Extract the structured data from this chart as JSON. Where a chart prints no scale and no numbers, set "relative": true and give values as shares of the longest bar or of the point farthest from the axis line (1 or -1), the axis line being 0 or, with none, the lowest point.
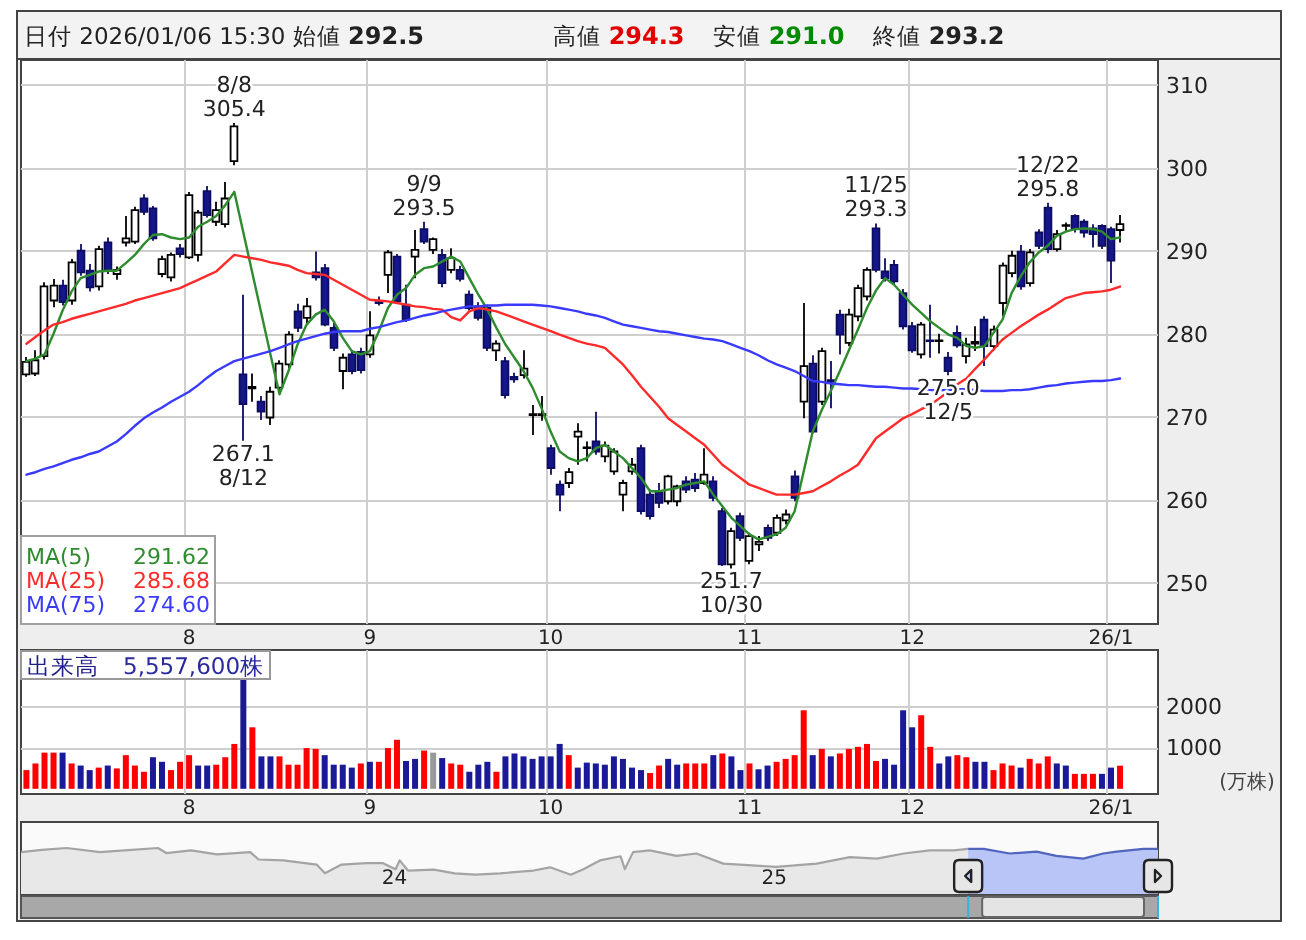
{
  "chart_data": [
    {
      "type": "candlestick",
      "title": "日付 2026/01/06 15:30 始値 **292.5** 高値 **294.3** 安値 **291.0** 終値 **293.2**",
      "categories": [
        null,
        null,
        null,
        null,
        null,
        null,
        null,
        null,
        null,
        null,
        null,
        null,
        null,
        null,
        null,
        null,
        null,
        null,
        "8",
        null,
        null,
        null,
        null,
        null,
        null,
        null,
        null,
        null,
        null,
        null,
        null,
        null,
        null,
        null,
        null,
        null,
        null,
        null,
        "9",
        null,
        null,
        null,
        null,
        null,
        null,
        null,
        null,
        null,
        null,
        null,
        null,
        null,
        null,
        null,
        null,
        null,
        null,
        null,
        "10",
        null,
        null,
        null,
        null,
        null,
        null,
        null,
        null,
        null,
        null,
        null,
        null,
        null,
        null,
        null,
        null,
        null,
        null,
        null,
        null,
        null,
        "11",
        null,
        null,
        null,
        null,
        null,
        null,
        null,
        null,
        null,
        null,
        null,
        null,
        null,
        null,
        null,
        null,
        null,
        "12",
        null,
        null,
        null,
        null,
        null,
        null,
        null,
        null,
        null,
        null,
        null,
        null,
        null,
        null,
        null,
        null,
        null,
        null,
        null,
        null,
        null,
        "26/1",
        null
      ],
      "ohlc": [
        [
          275.1,
          277.2,
          274.8,
          276.6
        ],
        [
          275.2,
          278.0,
          274.9,
          276.8
        ],
        [
          277.3,
          286.2,
          276.9,
          285.7
        ],
        [
          284.0,
          286.6,
          283.2,
          285.8
        ],
        [
          285.8,
          286.5,
          283.4,
          283.8
        ],
        [
          284.0,
          289.0,
          283.5,
          288.6
        ],
        [
          290.0,
          290.8,
          287.0,
          287.4
        ],
        [
          287.6,
          288.4,
          285.1,
          285.6
        ],
        [
          285.7,
          290.6,
          285.2,
          290.2
        ],
        [
          291.0,
          291.6,
          287.2,
          287.6
        ],
        [
          287.2,
          288.1,
          286.5,
          287.7
        ],
        [
          291.0,
          294.2,
          290.5,
          291.5
        ],
        [
          291.1,
          295.3,
          290.8,
          294.9
        ],
        [
          296.3,
          296.8,
          294.3,
          294.7
        ],
        [
          295.1,
          295.4,
          291.2,
          291.5
        ],
        [
          287.2,
          289.4,
          286.8,
          289.0
        ],
        [
          286.8,
          289.8,
          286.3,
          289.5
        ],
        [
          290.3,
          290.8,
          289.2,
          289.6
        ],
        [
          289.2,
          297.1,
          289.0,
          296.7
        ],
        [
          289.5,
          294.9,
          288.7,
          294.6
        ],
        [
          297.2,
          297.8,
          294.0,
          294.3
        ],
        [
          293.5,
          295.9,
          293.0,
          294.9
        ],
        [
          293.2,
          298.3,
          292.8,
          296.3
        ],
        [
          300.8,
          305.4,
          300.3,
          305.0
        ],
        [
          275.1,
          284.7,
          267.1,
          271.5
        ],
        [
          273.4,
          275.2,
          271.8,
          273.6
        ],
        [
          271.8,
          272.5,
          269.6,
          270.6
        ],
        [
          269.9,
          273.6,
          269.0,
          273.0
        ],
        [
          273.5,
          276.8,
          273.0,
          276.4
        ],
        [
          276.3,
          280.3,
          275.8,
          279.9
        ],
        [
          282.7,
          283.6,
          280.2,
          280.7
        ],
        [
          281.9,
          284.3,
          281.2,
          283.3
        ],
        [
          287.4,
          289.9,
          286.4,
          286.8
        ],
        [
          287.9,
          288.4,
          280.9,
          281.1
        ],
        [
          280.7,
          281.3,
          277.9,
          278.3
        ],
        [
          275.5,
          277.6,
          273.3,
          277.1
        ],
        [
          277.5,
          278.0,
          275.1,
          275.5
        ],
        [
          277.8,
          278.3,
          275.2,
          275.6
        ],
        [
          277.5,
          282.7,
          277.1,
          279.8
        ],
        [
          283.8,
          284.5,
          283.4,
          283.7
        ],
        [
          287.1,
          290.1,
          284.9,
          289.8
        ],
        [
          289.3,
          289.6,
          283.6,
          283.9
        ],
        [
          283.5,
          285.9,
          281.4,
          281.7
        ],
        [
          289.3,
          292.5,
          286.7,
          290.1
        ],
        [
          292.6,
          293.5,
          290.8,
          291.1
        ],
        [
          290.1,
          291.6,
          289.6,
          291.4
        ],
        [
          289.5,
          290.2,
          285.6,
          286.1
        ],
        [
          287.7,
          290.3,
          287.3,
          289.1
        ],
        [
          287.7,
          288.2,
          286.3,
          286.6
        ],
        [
          284.7,
          285.2,
          282.8,
          283.1
        ],
        [
          283.3,
          283.8,
          281.6,
          281.9
        ],
        [
          283.1,
          283.5,
          277.9,
          278.3
        ],
        [
          278.0,
          279.2,
          276.7,
          278.8
        ],
        [
          276.7,
          277.2,
          272.2,
          272.6
        ],
        [
          274.8,
          275.3,
          274.1,
          274.5
        ],
        [
          275.0,
          278.0,
          274.6,
          275.8
        ],
        [
          270.2,
          271.4,
          267.8,
          270.3
        ],
        [
          270.2,
          272.5,
          269.5,
          270.3
        ],
        [
          266.2,
          266.6,
          263.0,
          263.8
        ],
        [
          261.8,
          262.3,
          258.6,
          260.6
        ],
        [
          262.0,
          263.8,
          261.4,
          263.3
        ],
        [
          267.6,
          269.2,
          264.2,
          268.2
        ],
        [
          266.2,
          267.0,
          264.6,
          266.3
        ],
        [
          267.0,
          270.6,
          265.4,
          265.8
        ],
        [
          265.2,
          267.0,
          264.5,
          266.5
        ],
        [
          263.4,
          266.2,
          263.0,
          265.8
        ],
        [
          260.6,
          262.4,
          258.6,
          262.0
        ],
        [
          263.4,
          265.0,
          263.0,
          264.2
        ],
        [
          266.2,
          266.6,
          258.2,
          258.6
        ],
        [
          260.6,
          261.2,
          257.6,
          258.0
        ],
        [
          260.8,
          262.0,
          259.0,
          259.6
        ],
        [
          259.8,
          263.0,
          259.4,
          262.8
        ],
        [
          259.8,
          261.8,
          259.2,
          261.6
        ],
        [
          262.2,
          262.8,
          260.8,
          261.2
        ],
        [
          262.4,
          263.2,
          260.9,
          261.4
        ],
        [
          262.0,
          266.2,
          261.8,
          263.0
        ],
        [
          262.2,
          262.8,
          259.8,
          260.2
        ],
        [
          258.6,
          259.0,
          252.0,
          252.2
        ],
        [
          252.2,
          256.6,
          251.7,
          256.2
        ],
        [
          258.0,
          258.4,
          255.0,
          255.4
        ],
        [
          252.6,
          256.0,
          252.2,
          255.6
        ],
        [
          254.6,
          255.6,
          253.8,
          254.9
        ],
        [
          256.6,
          257.0,
          255.0,
          255.4
        ],
        [
          256.0,
          258.2,
          255.6,
          257.8
        ],
        [
          257.5,
          258.8,
          257.0,
          258.2
        ],
        [
          262.8,
          263.5,
          259.8,
          260.2
        ],
        [
          271.8,
          283.7,
          269.8,
          276.1
        ],
        [
          276.4,
          277.4,
          268.0,
          268.2
        ],
        [
          271.8,
          278.3,
          271.4,
          277.9
        ],
        [
          274.4,
          276.7,
          271.0,
          274.2
        ],
        [
          282.3,
          282.9,
          277.5,
          279.9
        ],
        [
          278.9,
          283.0,
          278.5,
          282.3
        ],
        [
          282.1,
          285.9,
          281.5,
          285.5
        ],
        [
          284.5,
          288.0,
          284.0,
          287.7
        ],
        [
          292.7,
          293.3,
          287.4,
          287.7
        ],
        [
          287.5,
          289.1,
          286.3,
          286.7
        ],
        [
          288.3,
          288.9,
          285.9,
          286.3
        ],
        [
          284.9,
          285.4,
          280.5,
          280.9
        ],
        [
          280.9,
          281.4,
          277.7,
          278.0
        ],
        [
          277.5,
          281.4,
          277.0,
          281.1
        ],
        [
          279.2,
          283.5,
          277.1,
          279.1
        ],
        [
          279.1,
          280.0,
          277.6,
          279.2
        ],
        [
          277.1,
          277.8,
          275.0,
          275.5
        ],
        [
          280.1,
          281.0,
          278.3,
          278.6
        ],
        [
          277.3,
          279.5,
          276.4,
          278.7
        ],
        [
          278.8,
          280.9,
          277.9,
          279.0
        ],
        [
          281.7,
          282.1,
          276.1,
          278.5
        ],
        [
          278.5,
          281.0,
          278.0,
          280.5
        ],
        [
          283.7,
          288.6,
          282.1,
          288.2
        ],
        [
          287.3,
          290.0,
          286.8,
          289.4
        ],
        [
          289.9,
          290.7,
          285.3,
          285.7
        ],
        [
          286.1,
          290.2,
          285.7,
          289.8
        ],
        [
          292.2,
          292.6,
          290.2,
          290.6
        ],
        [
          295.2,
          295.8,
          289.7,
          290.2
        ],
        [
          290.2,
          292.5,
          289.9,
          292.0
        ],
        [
          293.0,
          293.4,
          292.4,
          293.1
        ],
        [
          294.2,
          294.4,
          292.2,
          292.6
        ],
        [
          293.5,
          293.8,
          291.6,
          292.2
        ],
        [
          292.7,
          293.2,
          290.4,
          292.0
        ],
        [
          293.0,
          293.2,
          290.2,
          290.6
        ],
        [
          292.6,
          292.9,
          286.1,
          288.8
        ],
        [
          292.5,
          294.3,
          291.0,
          293.2
        ]
      ],
      "series": [
        {
          "type": "line",
          "name": "MA(5)",
          "color": "#2e8b2e",
          "values": [
            276.7,
            277.0,
            277.5,
            280.0,
            282.8,
            285.1,
            286.7,
            287.1,
            287.5,
            287.6,
            287.6,
            288.5,
            289.5,
            290.8,
            291.9,
            292.0,
            291.6,
            291.4,
            291.6,
            292.9,
            293.5,
            294.2,
            295.5,
            297.1,
            292.2,
            287.3,
            282.4,
            277.5,
            272.7,
            275.5,
            278.7,
            281.1,
            282.3,
            282.9,
            281.5,
            279.5,
            277.9,
            277.5,
            277.9,
            280.3,
            283.1,
            284.7,
            285.5,
            287.1,
            287.9,
            288.1,
            288.7,
            289.3,
            288.7,
            286.7,
            284.7,
            282.9,
            280.7,
            278.7,
            277.1,
            275.5,
            273.5,
            271.0,
            268.2,
            265.8,
            265.0,
            264.6,
            265.0,
            266.2,
            266.6,
            265.8,
            265.0,
            263.8,
            262.6,
            261.0,
            261.0,
            261.2,
            261.4,
            261.8,
            262.0,
            262.2,
            260.6,
            259.2,
            257.8,
            256.8,
            255.8,
            255.2,
            255.5,
            255.8,
            256.6,
            258.6,
            263.4,
            268.2,
            270.8,
            273.1,
            275.5,
            278.0,
            280.5,
            283.1,
            285.2,
            286.7,
            285.9,
            284.7,
            283.5,
            282.5,
            281.5,
            280.7,
            279.9,
            279.5,
            278.5,
            278.3,
            278.5,
            280.1,
            281.7,
            284.9,
            286.9,
            288.6,
            289.8,
            290.6,
            291.8,
            292.3,
            292.6,
            292.7,
            292.6,
            292.3,
            291.4,
            291.62
          ]
        },
        {
          "type": "line",
          "name": "MA(25)",
          "color": "#ff2a2a",
          "values": [
            278.8,
            279.6,
            280.4,
            281.1,
            281.4,
            281.8,
            282.1,
            282.4,
            282.7,
            283.0,
            283.3,
            283.6,
            284.0,
            284.3,
            284.6,
            284.9,
            285.2,
            285.5,
            286.0,
            286.5,
            287.0,
            287.5,
            288.5,
            289.5,
            289.3,
            289.1,
            288.9,
            288.6,
            288.4,
            288.2,
            287.7,
            287.3,
            287.2,
            287.1,
            286.5,
            285.9,
            285.3,
            284.7,
            284.1,
            284.0,
            283.9,
            283.7,
            283.5,
            283.3,
            283.2,
            283.0,
            282.9,
            282.0,
            281.6,
            282.7,
            283.1,
            282.9,
            282.7,
            282.3,
            281.9,
            281.5,
            281.1,
            280.7,
            280.3,
            279.9,
            279.5,
            279.1,
            278.8,
            278.6,
            278.3,
            277.3,
            276.3,
            275.0,
            273.6,
            272.4,
            271.2,
            269.8,
            269.0,
            268.2,
            267.4,
            266.6,
            265.4,
            264.2,
            263.4,
            262.6,
            261.8,
            261.4,
            261.0,
            260.6,
            260.6,
            260.6,
            260.8,
            261.0,
            261.6,
            262.2,
            262.9,
            263.5,
            264.2,
            265.8,
            267.4,
            268.2,
            269.0,
            269.8,
            270.3,
            270.9,
            271.4,
            272.2,
            273.0,
            273.9,
            274.6,
            275.8,
            276.9,
            278.1,
            279.3,
            280.1,
            280.9,
            281.6,
            282.3,
            282.9,
            283.6,
            284.3,
            284.6,
            284.9,
            285.0,
            285.1,
            285.3,
            285.68
          ]
        },
        {
          "type": "line",
          "name": "MA(75)",
          "color": "#3a3aff",
          "values": [
            263.0,
            263.3,
            263.7,
            264.0,
            264.4,
            264.8,
            265.1,
            265.5,
            265.8,
            266.4,
            267.0,
            267.9,
            268.9,
            269.8,
            270.5,
            271.1,
            271.8,
            272.4,
            273.0,
            273.8,
            274.7,
            275.5,
            276.1,
            276.7,
            277.0,
            277.3,
            277.6,
            277.9,
            278.3,
            278.7,
            279.1,
            279.4,
            279.7,
            280.0,
            280.2,
            280.3,
            280.3,
            280.3,
            280.6,
            280.8,
            281.1,
            281.4,
            281.6,
            281.9,
            282.2,
            282.4,
            282.7,
            282.9,
            283.1,
            283.3,
            283.3,
            283.4,
            283.4,
            283.5,
            283.5,
            283.5,
            283.5,
            283.4,
            283.3,
            283.1,
            282.9,
            282.7,
            282.4,
            282.2,
            281.9,
            281.5,
            281.1,
            280.9,
            280.7,
            280.5,
            280.3,
            280.2,
            280.0,
            279.8,
            279.6,
            279.4,
            279.3,
            279.1,
            278.7,
            278.3,
            277.9,
            277.4,
            276.8,
            276.3,
            275.9,
            275.5,
            274.9,
            274.3,
            274.2,
            274.0,
            273.9,
            273.8,
            273.8,
            273.7,
            273.6,
            273.6,
            273.5,
            273.4,
            273.4,
            273.3,
            273.2,
            273.2,
            273.2,
            273.3,
            273.3,
            273.2,
            273.1,
            273.1,
            273.1,
            273.2,
            273.2,
            273.3,
            273.5,
            273.7,
            273.8,
            274.0,
            274.1,
            274.2,
            274.3,
            274.3,
            274.4,
            274.6
          ]
        }
      ],
      "ylim": [
        245,
        313
      ],
      "yticks": [
        250,
        260,
        270,
        280,
        290,
        300,
        310
      ],
      "grid": true,
      "legend": "bottom left",
      "annotations": [
        "291.62",
        "285.68",
        "274.60",
        {
          "text": "8/8",
          "y": 305.4
        },
        {
          "text": "305.4",
          "y": 305.4
        },
        {
          "text": "267.1",
          "y": 267.1
        },
        {
          "text": "8/12",
          "y": 267.1
        },
        {
          "text": "9/9",
          "y": 293.5
        },
        {
          "text": "293.5",
          "y": 293.5
        },
        {
          "text": "251.7",
          "y": 251.7
        },
        {
          "text": "10/30",
          "y": 251.7
        },
        {
          "text": "11/25",
          "y": 293.3
        },
        {
          "text": "293.3",
          "y": 293.3
        },
        {
          "text": "275.0",
          "y": 275.0
        },
        {
          "text": "12/5",
          "y": 275.0
        },
        {
          "text": "12/22",
          "y": 295.8
        },
        {
          "text": "295.8",
          "y": 295.8
        }
      ]
    },
    {
      "type": "bar",
      "title": "出来高",
      "subtitle": "5,557,600株",
      "ylabel": "(万株)",
      "categories": [
        null,
        null,
        null,
        null,
        null,
        null,
        null,
        null,
        null,
        null,
        null,
        null,
        null,
        null,
        null,
        null,
        null,
        null,
        "8",
        null,
        null,
        null,
        null,
        null,
        null,
        null,
        null,
        null,
        null,
        null,
        null,
        null,
        null,
        null,
        null,
        null,
        null,
        null,
        "9",
        null,
        null,
        null,
        null,
        null,
        null,
        null,
        null,
        null,
        null,
        null,
        null,
        null,
        null,
        null,
        null,
        null,
        null,
        null,
        "10",
        null,
        null,
        null,
        null,
        null,
        null,
        null,
        null,
        null,
        null,
        null,
        null,
        null,
        null,
        null,
        null,
        null,
        null,
        null,
        null,
        null,
        "11",
        null,
        null,
        null,
        null,
        null,
        null,
        null,
        null,
        null,
        null,
        null,
        null,
        null,
        null,
        null,
        null,
        null,
        "12",
        null,
        null,
        null,
        null,
        null,
        null,
        null,
        null,
        null,
        null,
        null,
        null,
        null,
        null,
        null,
        null,
        null,
        null,
        null,
        null,
        null,
        "26/1",
        null
      ],
      "values": [
        450,
        610,
        870,
        870,
        870,
        610,
        560,
        450,
        510,
        560,
        490,
        810,
        560,
        410,
        760,
        650,
        450,
        650,
        810,
        560,
        560,
        580,
        760,
        1080,
        2660,
        1480,
        780,
        780,
        780,
        580,
        580,
        980,
        960,
        810,
        580,
        580,
        510,
        610,
        650,
        650,
        980,
        1180,
        670,
        720,
        920,
        870,
        740,
        610,
        580,
        410,
        580,
        650,
        410,
        780,
        850,
        780,
        720,
        780,
        780,
        1080,
        810,
        510,
        630,
        610,
        580,
        780,
        720,
        510,
        450,
        380,
        560,
        720,
        580,
        610,
        610,
        610,
        810,
        850,
        780,
        450,
        610,
        470,
        560,
        650,
        720,
        810,
        1890,
        810,
        960,
        780,
        850,
        960,
        1010,
        1080,
        670,
        720,
        580,
        1890,
        1480,
        1770,
        1010,
        610,
        780,
        810,
        760,
        650,
        650,
        450,
        610,
        560,
        510,
        720,
        610,
        780,
        610,
        560,
        360,
        360,
        360,
        360,
        510,
        555.76
      ],
      "colors": [
        "#ff0000",
        "#ff0000",
        "#ff0000",
        "#ff0000",
        "#1a1a99",
        "#ff0000",
        "#1a1a99",
        "#1a1a99",
        "#ff0000",
        "#1a1a99",
        "#ff0000",
        "#ff0000",
        "#ff0000",
        "#ff0000",
        "#1a1a99",
        "#1a1a99",
        "#ff0000",
        "#ff0000",
        "#ff0000",
        "#1a1a99",
        "#1a1a99",
        "#ff0000",
        "#ff0000",
        "#ff0000",
        "#1a1a99",
        "#ff0000",
        "#1a1a99",
        "#1a1a99",
        "#ff0000",
        "#ff0000",
        "#ff0000",
        "#ff0000",
        "#ff0000",
        "#1a1a99",
        "#1a1a99",
        "#1a1a99",
        "#1a1a99",
        "#ff0000",
        "#1a1a99",
        "#ff0000",
        "#ff0000",
        "#ff0000",
        "#1a1a99",
        "#1a1a99",
        "#ff0000",
        "#999999",
        "#1a1a99",
        "#ff0000",
        "#ff0000",
        "#1a1a99",
        "#1a1a99",
        "#1a1a99",
        "#ff0000",
        "#1a1a99",
        "#1a1a99",
        "#1a1a99",
        "#1a1a99",
        "#1a1a99",
        "#1a1a99",
        "#1a1a99",
        "#ff0000",
        "#1a1a99",
        "#1a1a99",
        "#1a1a99",
        "#1a1a99",
        "#1a1a99",
        "#1a1a99",
        "#1a1a99",
        "#1a1a99",
        "#ff0000",
        "#ff0000",
        "#1a1a99",
        "#1a1a99",
        "#ff0000",
        "#ff0000",
        "#ff0000",
        "#1a1a99",
        "#ff0000",
        "#1a1a99",
        "#1a1a99",
        "#ff0000",
        "#1a1a99",
        "#1a1a99",
        "#ff0000",
        "#ff0000",
        "#ff0000",
        "#ff0000",
        "#1a1a99",
        "#ff0000",
        "#1a1a99",
        "#ff0000",
        "#ff0000",
        "#ff0000",
        "#ff0000",
        "#ff0000",
        "#1a1a99",
        "#1a1a99",
        "#1a1a99",
        "#1a1a99",
        "#ff0000",
        "#ff0000",
        "#1a1a99",
        "#1a1a99",
        "#ff0000",
        "#ff0000",
        "#1a1a99",
        "#1a1a99",
        "#ff0000",
        "#ff0000",
        "#ff0000",
        "#1a1a99",
        "#ff0000",
        "#ff0000",
        "#ff0000",
        "#1a1a99",
        "#1a1a99",
        "#ff0000",
        "#ff0000",
        "#ff0000",
        "#1a1a99",
        "#1a1a99",
        "#ff0000"
      ],
      "ylim": [
        -125,
        3340
      ],
      "yticks": [
        1000,
        2000
      ],
      "grid": true
    },
    {
      "type": "area",
      "relative": true,
      "xlim": [
        "2023-01-06",
        "2026-01-06"
      ],
      "xticks": [
        {
          "value": "2024-01-01",
          "label": "24"
        },
        {
          "value": "2025-01-01",
          "label": "25"
        }
      ],
      "series": [
        {
          "color": "#e8e8e8",
          "x": [
            "2023-01-06",
            "2023-01-26",
            "2023-02-19",
            "2023-03-23",
            "2023-04-16",
            "2023-05-18",
            "2023-05-26",
            "2023-06-19",
            "2023-07-14",
            "2023-08-15",
            "2023-08-23",
            "2023-09-16",
            "2023-10-18",
            "2023-10-26",
            "2023-11-11",
            "2023-12-05",
            "2023-12-21",
            "2024-01-02",
            "2024-01-06",
            "2024-01-14",
            "2024-02-08",
            "2024-02-28",
            "2024-03-19",
            "2024-04-12",
            "2024-05-14",
            "2024-05-30",
            "2024-06-19",
            "2024-07-01",
            "2024-07-17",
            "2024-08-06",
            "2024-08-10",
            "2024-08-18",
            "2024-09-03",
            "2024-09-29",
            "2024-10-18",
            "2024-11-13",
            "2025-01-03",
            "2025-02-11",
            "2025-03-15",
            "2025-04-10",
            "2025-05-06",
            "2025-05-31",
            "2025-06-23",
            "2025-07-07"
          ],
          "values": [
            0.91,
            0.96,
            1.0,
            0.91,
            0.95,
            1.0,
            0.89,
            0.95,
            0.86,
            0.91,
            0.75,
            0.73,
            0.64,
            0.45,
            0.64,
            0.67,
            0.67,
            0.54,
            0.73,
            0.51,
            0.53,
            0.45,
            0.42,
            0.45,
            0.51,
            0.58,
            0.42,
            0.54,
            0.73,
            0.82,
            0.54,
            0.91,
            0.95,
            0.83,
            0.88,
            0.66,
            0.59,
            0.66,
            0.8,
            0.77,
            0.88,
            0.95,
            0.95,
            0.98
          ]
        },
        {
          "color": "#b9c4f7",
          "x": [
            "2025-07-07",
            "2025-07-22",
            "2025-08-16",
            "2025-09-11",
            "2025-09-30",
            "2025-10-26",
            "2025-11-14",
            "2025-11-27",
            "2025-12-23",
            "2026-01-06"
          ],
          "values": [
            0.98,
            0.98,
            0.88,
            0.92,
            0.83,
            0.77,
            0.88,
            0.92,
            0.98,
            0.98
          ]
        }
      ]
    }
  ]
}
